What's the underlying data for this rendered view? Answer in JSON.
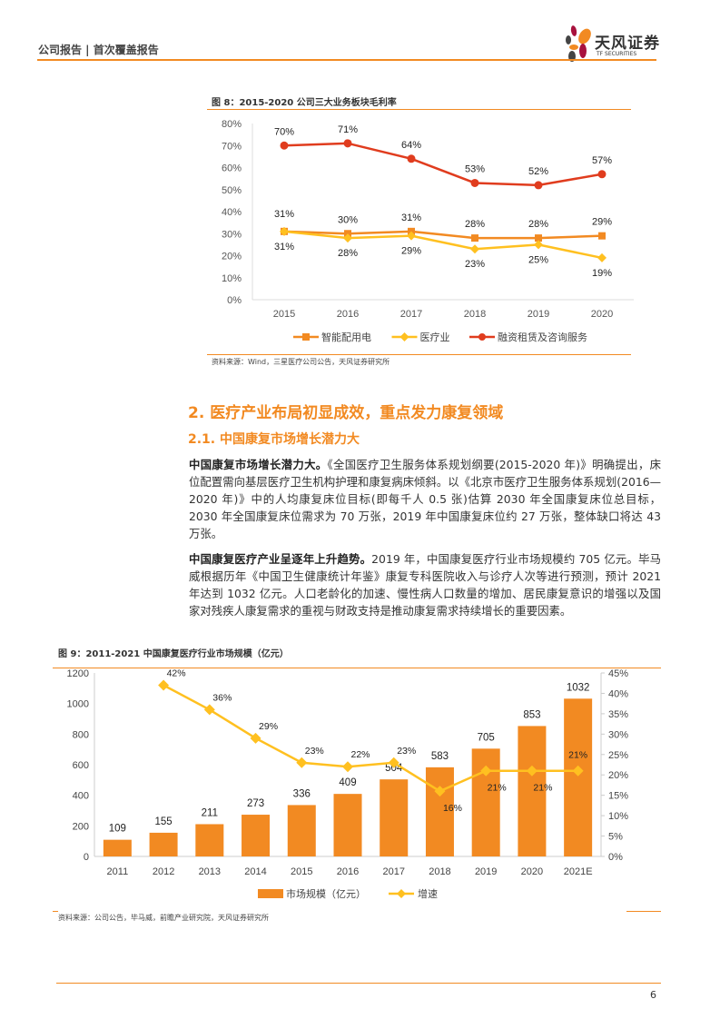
{
  "header": {
    "report_type": "公司报告 | 首次覆盖报告",
    "logo_text": "天风证券",
    "logo_sub": "TF SECURITIES"
  },
  "figure8": {
    "title": "图 8：2015-2020 公司三大业务板块毛利率",
    "source": "资料来源：Wind，三星医疗公司公告，天风证券研究所"
  },
  "section": {
    "h2": "2. 医疗产业布局初显成效，重点发力康复领域",
    "h3": "2.1. 中国康复市场增长潜力大"
  },
  "paragraphs": [
    {
      "lead": "中国康复市场增长潜力大。",
      "body": "《全国医疗卫生服务体系规划纲要(2015-2020 年)》明确提出，床位配置需向基层医疗卫生机构护理和康复病床倾斜。以《北京市医疗卫生服务体系规划(2016—2020 年)》中的人均康复床位目标(即每千人 0.5 张)估算 2030 年全国康复床位总目标，2030 年全国康复床位需求为 70 万张，2019 年中国康复床位约 27 万张，整体缺口将达 43 万张。"
    },
    {
      "lead": "中国康复医疗产业呈逐年上升趋势。",
      "body": "2019 年，中国康复医疗行业市场规模约 705 亿元。毕马威根据历年《中国卫生健康统计年鉴》康复专科医院收入与诊疗人次等进行预测，预计 2021 年达到 1032 亿元。人口老龄化的加速、慢性病人口数量的增加、居民康复意识的增强以及国家对残疾人康复需求的重视与财政支持是推动康复需求持续增长的重要因素。"
    }
  ],
  "figure9": {
    "title": "图 9：2011-2021 中国康复医疗行业市场规模（亿元）",
    "source": "资料来源：公司公告，毕马威，前瞻产业研究院，天风证券研究所"
  },
  "page_number": "6",
  "chart_data": [
    {
      "type": "line",
      "categories": [
        "2015",
        "2016",
        "2017",
        "2018",
        "2019",
        "2020"
      ],
      "ylim": [
        0,
        80
      ],
      "yticks": [
        "0%",
        "10%",
        "20%",
        "30%",
        "40%",
        "50%",
        "60%",
        "70%",
        "80%"
      ],
      "grid": false,
      "legend": "bottom",
      "series": [
        {
          "name": "智能配用电",
          "values": [
            31,
            30,
            31,
            28,
            28,
            29
          ],
          "color": "#F28A22",
          "marker": "square"
        },
        {
          "name": "医疗业",
          "values": [
            31,
            28,
            29,
            23,
            25,
            19
          ],
          "color": "#FFC020",
          "marker": "diamond"
        },
        {
          "name": "融资租赁及咨询服务",
          "values": [
            70,
            71,
            64,
            53,
            52,
            57
          ],
          "color": "#E03C1E",
          "marker": "circle"
        }
      ]
    },
    {
      "type": "bar",
      "categories": [
        "2011",
        "2012",
        "2013",
        "2014",
        "2015",
        "2016",
        "2017",
        "2018",
        "2019",
        "2020",
        "2021E"
      ],
      "ylim": [
        0,
        1200
      ],
      "yticks": [
        "0",
        "200",
        "400",
        "600",
        "800",
        "1000",
        "1200"
      ],
      "y2lim": [
        0,
        45
      ],
      "y2ticks": [
        "0%",
        "5%",
        "10%",
        "15%",
        "20%",
        "25%",
        "30%",
        "35%",
        "40%",
        "45%"
      ],
      "grid": false,
      "legend": "bottom",
      "series": [
        {
          "name": "市场规模（亿元）",
          "type": "bar",
          "values": [
            109,
            155,
            211,
            273,
            336,
            409,
            504,
            583,
            705,
            853,
            1032
          ],
          "color": "#F28A22"
        },
        {
          "name": "增速",
          "type": "line",
          "axis": "right",
          "values": [
            null,
            42,
            36,
            29,
            23,
            22,
            23,
            16,
            21,
            21,
            21
          ],
          "color": "#FFC020",
          "marker": "diamond"
        }
      ]
    }
  ]
}
